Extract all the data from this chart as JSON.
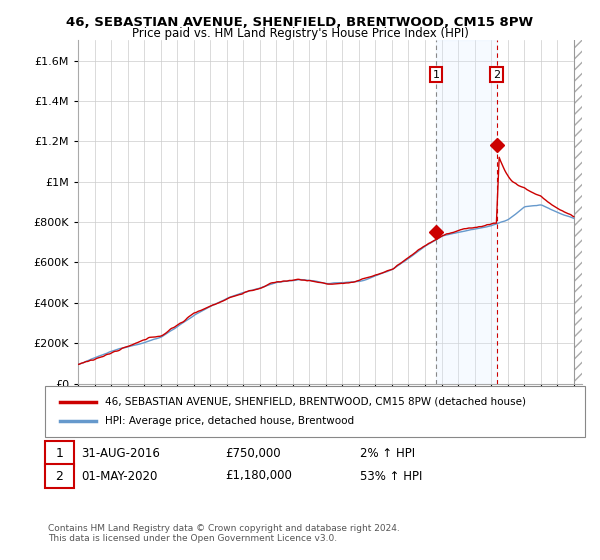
{
  "title": "46, SEBASTIAN AVENUE, SHENFIELD, BRENTWOOD, CM15 8PW",
  "subtitle": "Price paid vs. HM Land Registry's House Price Index (HPI)",
  "ylabel_ticks": [
    "£0",
    "£200K",
    "£400K",
    "£600K",
    "£800K",
    "£1M",
    "£1.2M",
    "£1.4M",
    "£1.6M"
  ],
  "ytick_values": [
    0,
    200000,
    400000,
    600000,
    800000,
    1000000,
    1200000,
    1400000,
    1600000
  ],
  "ylim": [
    0,
    1700000
  ],
  "xlim_start": 1995.0,
  "xlim_end": 2025.5,
  "xticks": [
    1995,
    1996,
    1997,
    1998,
    1999,
    2000,
    2001,
    2002,
    2003,
    2004,
    2005,
    2006,
    2007,
    2008,
    2009,
    2010,
    2011,
    2012,
    2013,
    2014,
    2015,
    2016,
    2017,
    2018,
    2019,
    2020,
    2021,
    2022,
    2023,
    2024,
    2025
  ],
  "sale1_x": 2016.67,
  "sale1_y": 750000,
  "sale1_label": "1",
  "sale1_date": "31-AUG-2016",
  "sale1_price": "£750,000",
  "sale1_hpi": "2% ↑ HPI",
  "sale2_x": 2020.33,
  "sale2_y": 1180000,
  "sale2_label": "2",
  "sale2_date": "01-MAY-2020",
  "sale2_price": "£1,180,000",
  "sale2_hpi": "53% ↑ HPI",
  "legend_label_red": "46, SEBASTIAN AVENUE, SHENFIELD, BRENTWOOD, CM15 8PW (detached house)",
  "legend_label_blue": "HPI: Average price, detached house, Brentwood",
  "footer": "Contains HM Land Registry data © Crown copyright and database right 2024.\nThis data is licensed under the Open Government Licence v3.0.",
  "red_color": "#cc0000",
  "blue_color": "#6699cc",
  "background_color": "#ffffff",
  "grid_color": "#cccccc",
  "shade_color": "#ddeeff",
  "hatch_color": "#cccccc"
}
